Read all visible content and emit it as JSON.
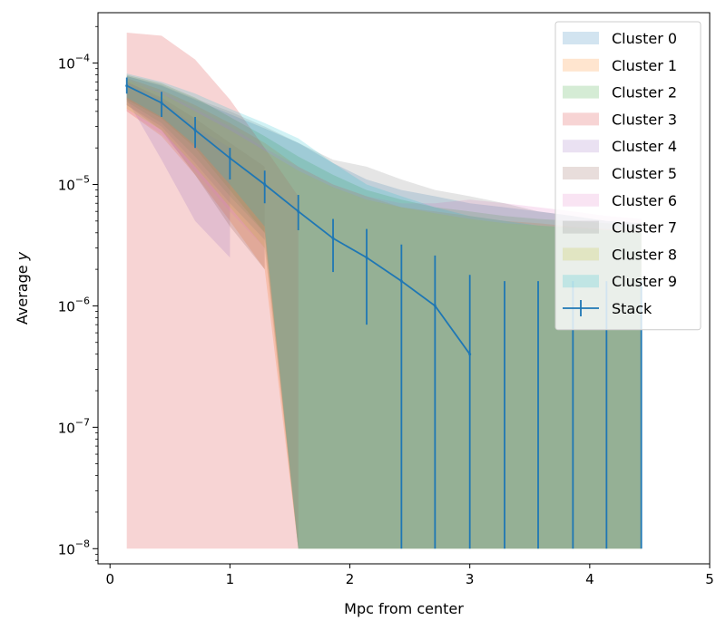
{
  "chart_data": {
    "type": "line",
    "xlabel": "Mpc from center",
    "ylabel": "Average y",
    "xlim": [
      -0.1,
      5.0
    ],
    "ylim": [
      7.5e-09,
      0.00026
    ],
    "yscale": "log",
    "xticks": [
      0,
      1,
      2,
      3,
      4,
      5
    ],
    "yticks": [
      {
        "value": 1e-08,
        "base": "10",
        "exp": "−8"
      },
      {
        "value": 1e-07,
        "base": "10",
        "exp": "−7"
      },
      {
        "value": 1e-06,
        "base": "10",
        "exp": "−6"
      },
      {
        "value": 1e-05,
        "base": "10",
        "exp": "−5"
      },
      {
        "value": 0.0001,
        "base": "10",
        "exp": "−4"
      }
    ],
    "legend_position": "top-right",
    "grid": false,
    "bands": [
      {
        "name": "Cluster 0",
        "color": "#1f77b4",
        "x": [
          0.14,
          0.43,
          0.71,
          1.0,
          1.29,
          1.57,
          1.86,
          2.14,
          2.43,
          2.71,
          3.0,
          3.29,
          3.57,
          3.86,
          4.14,
          4.43
        ],
        "upper": [
          7.8e-05,
          6.5e-05,
          5e-05,
          3.8e-05,
          2.9e-05,
          2.2e-05,
          1.5e-05,
          1.1e-05,
          9e-06,
          8e-06,
          7e-06,
          6.5e-06,
          6e-06,
          5.5e-06,
          5e-06,
          4.8e-06
        ],
        "lower": [
          4.5e-05,
          3e-05,
          1.5e-05,
          7e-06,
          3.5e-06,
          1e-08,
          1e-08,
          1e-08,
          1e-08,
          1e-08,
          1e-08,
          1e-08,
          1e-08,
          1e-08,
          1e-08,
          1e-08
        ]
      },
      {
        "name": "Cluster 1",
        "color": "#ff7f0e",
        "x": [
          0.14,
          0.43,
          0.71,
          1.0,
          1.29,
          1.57,
          1.86,
          2.14,
          2.43,
          2.71,
          3.0,
          3.29,
          3.57,
          3.86,
          4.14,
          4.43
        ],
        "upper": [
          7.5e-05,
          6e-05,
          4.5e-05,
          3.2e-05,
          2.2e-05,
          1.4e-05,
          1e-05,
          8e-06,
          6.5e-06,
          6e-06,
          5.5e-06,
          5e-06,
          4.8e-06,
          4.5e-06,
          4.3e-06,
          4.2e-06
        ],
        "lower": [
          4e-05,
          2.5e-05,
          1.2e-05,
          5e-06,
          2e-06,
          1e-08,
          1e-08,
          1e-08,
          1e-08,
          1e-08,
          1e-08,
          1e-08,
          1e-08,
          1e-08,
          1e-08,
          1e-08
        ]
      },
      {
        "name": "Cluster 2",
        "color": "#2ca02c",
        "x": [
          0.14,
          0.43,
          0.71,
          1.0,
          1.29,
          1.57,
          1.86,
          2.14,
          2.43,
          2.71,
          3.0,
          3.29,
          3.57,
          3.86,
          4.14,
          4.43
        ],
        "upper": [
          8e-05,
          6.8e-05,
          5.2e-05,
          3.6e-05,
          2.5e-05,
          1.7e-05,
          1.2e-05,
          9e-06,
          7.5e-06,
          6.5e-06,
          6e-06,
          5.5e-06,
          5.2e-06,
          5e-06,
          4.8e-06,
          4.6e-06
        ],
        "lower": [
          5e-05,
          3.5e-05,
          2e-05,
          9e-06,
          4e-06,
          1e-08,
          1e-08,
          1e-08,
          1e-08,
          1e-08,
          1e-08,
          1e-08,
          1e-08,
          1e-08,
          1e-08,
          1e-08
        ]
      },
      {
        "name": "Cluster 3",
        "color": "#d62728",
        "x": [
          0.14,
          0.43,
          0.71,
          1.0,
          1.29,
          1.57
        ],
        "upper": [
          0.000178,
          0.000168,
          0.000107,
          5e-05,
          2e-05,
          8e-06
        ],
        "lower": [
          1e-08,
          1e-08,
          1e-08,
          1e-08,
          1e-08,
          1e-08
        ]
      },
      {
        "name": "Cluster 4",
        "color": "#9467bd",
        "x": [
          0.14,
          0.43,
          0.71,
          1.0
        ],
        "upper": [
          7e-05,
          5e-05,
          3e-05,
          2e-05
        ],
        "lower": [
          5e-05,
          1.6e-05,
          5e-06,
          2.5e-06
        ]
      },
      {
        "name": "Cluster 5",
        "color": "#8c564b",
        "x": [
          0.14,
          0.43,
          0.71,
          1.0,
          1.29
        ],
        "upper": [
          7e-05,
          5.2e-05,
          3.5e-05,
          2.2e-05,
          1.4e-05
        ],
        "lower": [
          4.5e-05,
          2.8e-05,
          1.2e-05,
          4.5e-06,
          2e-06
        ]
      },
      {
        "name": "Cluster 6",
        "color": "#e377c2",
        "x": [
          0.14,
          0.43,
          0.71,
          1.0,
          1.29,
          1.57,
          1.86,
          2.14,
          2.43,
          2.71,
          3.0,
          3.29,
          3.57,
          3.86,
          4.14,
          4.43
        ],
        "upper": [
          7e-05,
          5.8e-05,
          4.2e-05,
          3e-05,
          2e-05,
          1.4e-05,
          1e-05,
          8e-06,
          7e-06,
          7e-06,
          7.5e-06,
          7e-06,
          6.5e-06,
          6e-06,
          5.5e-06,
          5.2e-06
        ],
        "lower": [
          4e-05,
          2.6e-05,
          1.3e-05,
          6e-06,
          3e-06,
          1e-08,
          1e-08,
          1e-08,
          1e-08,
          1e-08,
          1e-08,
          1e-08,
          1e-08,
          1e-08,
          1e-08,
          1e-08
        ]
      },
      {
        "name": "Cluster 7",
        "color": "#7f7f7f",
        "x": [
          0.14,
          0.43,
          0.71,
          1.0,
          1.29,
          1.57,
          1.86,
          2.14,
          2.43,
          2.71,
          3.0,
          3.29,
          3.57,
          3.86,
          4.14,
          4.43
        ],
        "upper": [
          7.8e-05,
          6.6e-05,
          5.1e-05,
          4e-05,
          3e-05,
          2.2e-05,
          1.6e-05,
          1.4e-05,
          1.1e-05,
          9e-06,
          8e-06,
          7e-06,
          6e-06,
          5.5e-06,
          5e-06,
          4.8e-06
        ],
        "lower": [
          4.8e-05,
          3.2e-05,
          1.7e-05,
          8e-06,
          4e-06,
          1e-08,
          1e-08,
          1e-08,
          1e-08,
          1e-08,
          1e-08,
          1e-08,
          1e-08,
          1e-08,
          1e-08,
          1e-08
        ]
      },
      {
        "name": "Cluster 8",
        "color": "#bcbd22",
        "x": [
          0.14,
          0.43,
          0.71,
          1.0,
          1.29,
          1.57,
          1.86,
          2.14,
          2.43,
          2.71,
          3.0,
          3.29,
          3.57,
          3.86,
          4.14,
          4.43
        ],
        "upper": [
          7.2e-05,
          5.6e-05,
          4e-05,
          2.8e-05,
          1.9e-05,
          1.3e-05,
          9.5e-06,
          7.5e-06,
          6.5e-06,
          5.8e-06,
          5.2e-06,
          4.8e-06,
          4.6e-06,
          4.4e-06,
          4.2e-06,
          4e-06
        ],
        "lower": [
          4.2e-05,
          2.8e-05,
          1.4e-05,
          6.5e-06,
          3e-06,
          1e-08,
          1e-08,
          1e-08,
          1e-08,
          1e-08,
          1e-08,
          1e-08,
          1e-08,
          1e-08,
          1e-08,
          1e-08
        ]
      },
      {
        "name": "Cluster 9",
        "color": "#17becf",
        "x": [
          0.14,
          0.43,
          0.71,
          1.0,
          1.29,
          1.57,
          1.86,
          2.14,
          2.43,
          2.71,
          3.0,
          3.29,
          3.57,
          3.86,
          4.14,
          4.43
        ],
        "upper": [
          8.2e-05,
          7e-05,
          5.6e-05,
          4.2e-05,
          3.2e-05,
          2.4e-05,
          1.5e-05,
          1e-05,
          8e-06,
          6.5e-06,
          5.5e-06,
          5e-06,
          4.6e-06,
          4.4e-06,
          4.2e-06,
          4e-06
        ],
        "lower": [
          5.2e-05,
          3.6e-05,
          2.1e-05,
          1e-05,
          4.5e-06,
          1e-08,
          1e-08,
          1e-08,
          1e-08,
          1e-08,
          1e-08,
          1e-08,
          1e-08,
          1e-08,
          1e-08,
          1e-08
        ]
      }
    ],
    "stack": {
      "name": "Stack",
      "color": "#1f77b4",
      "x": [
        0.14,
        0.43,
        0.71,
        1.0,
        1.29,
        1.57,
        1.86,
        2.14,
        2.43,
        2.71,
        3.0,
        3.29,
        3.57,
        3.86,
        4.14,
        4.43
      ],
      "y": [
        6.5e-05,
        4.7e-05,
        2.8e-05,
        1.65e-05,
        1e-05,
        6e-06,
        3.6e-06,
        2.5e-06,
        1.6e-06,
        1e-06,
        4e-07,
        null,
        null,
        null,
        null,
        null
      ],
      "err_upper": [
        7.6e-05,
        5.8e-05,
        3.6e-05,
        2e-05,
        1.3e-05,
        8.2e-06,
        5.2e-06,
        4.3e-06,
        3.2e-06,
        2.6e-06,
        1.8e-06,
        1.6e-06,
        1.6e-06,
        1.6e-06,
        1.6e-06,
        1.6e-06
      ],
      "err_lower": [
        5.6e-05,
        3.6e-05,
        2e-05,
        1.1e-05,
        7e-06,
        4.2e-06,
        1.9e-06,
        7e-07,
        1e-08,
        1e-08,
        1e-08,
        1e-08,
        1e-08,
        1e-08,
        1e-08,
        1e-08
      ]
    }
  }
}
